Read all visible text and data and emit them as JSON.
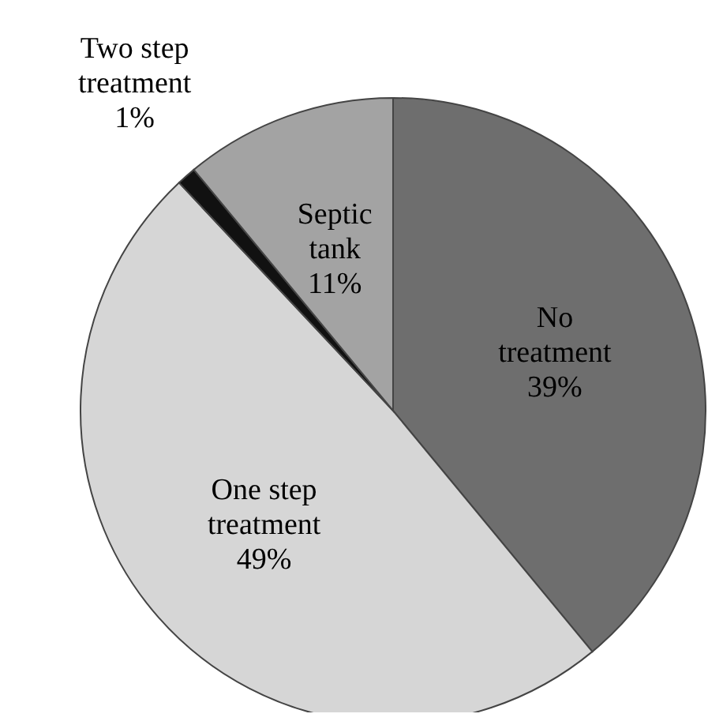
{
  "chart_data": {
    "type": "pie",
    "categories": [
      "No treatment",
      "One step treatment",
      "Two step treatment",
      "Septic tank"
    ],
    "values": [
      39,
      49,
      1,
      11
    ],
    "value_labels": [
      "39%",
      "49%",
      "1%",
      "11%"
    ],
    "colors": [
      "#6e6e6e",
      "#d6d6d6",
      "#111111",
      "#a3a3a3"
    ],
    "legend": false
  }
}
